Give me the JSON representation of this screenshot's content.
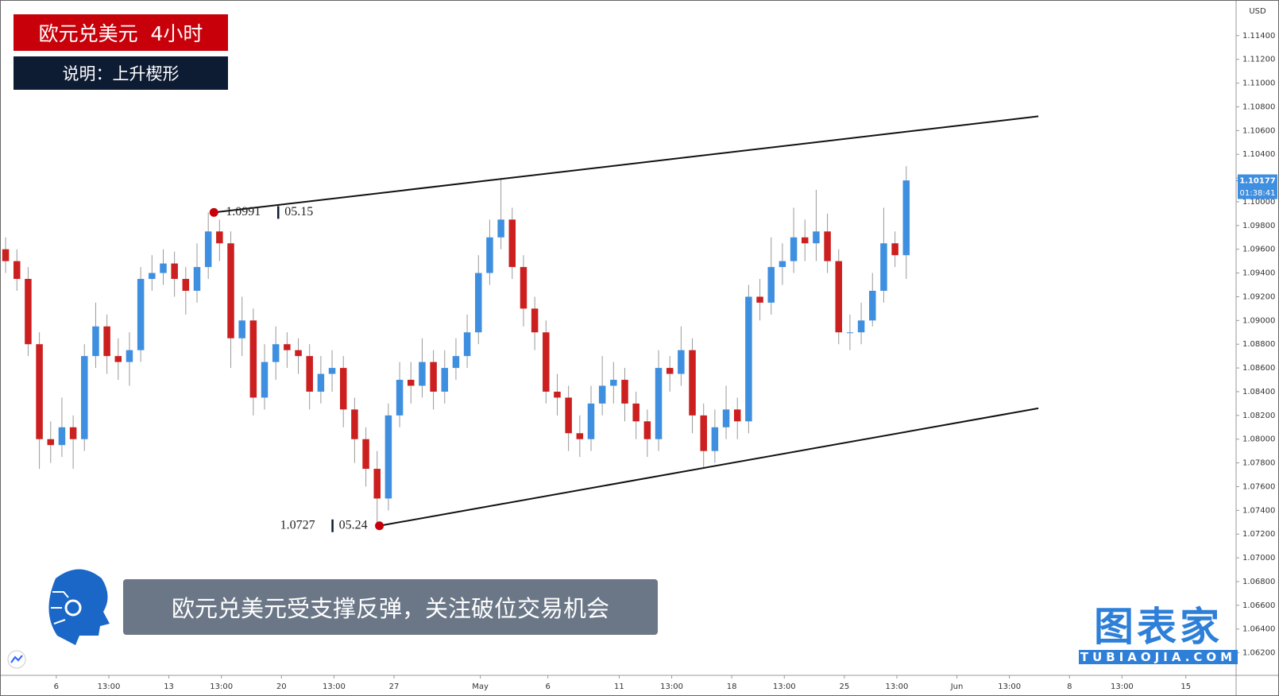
{
  "chart_data": {
    "type": "candlestick",
    "title": "欧元兑美元  4小时",
    "subtitle": "说明：上升楔形",
    "caption": "欧元兑美元受支撑反弹，关注破位交易机会",
    "currency": "USD",
    "last_price": {
      "value": 1.10177,
      "label": "1.10177"
    },
    "countdown": "01:38:41",
    "up_color": "#3f8fe0",
    "down_color": "#cc1f1f",
    "grid": false,
    "x": [
      1.5,
      4.5,
      7.5,
      10.5,
      13.5,
      16.5,
      19.5,
      22.5,
      25.5,
      28.5,
      31.5,
      34.5,
      37.5,
      40.5,
      43.5,
      46.5,
      49.5,
      52.5,
      55.5,
      58.5,
      61.5,
      64.5,
      67.5,
      70.5,
      73.5,
      76.5,
      79.5,
      82.5,
      85.5,
      88.5,
      91.5,
      94.5,
      97.5,
      100.5,
      103.5,
      106.5,
      109.5,
      112.5,
      115.5,
      118.5,
      121.5,
      124.5,
      127.5,
      130.5,
      133.5,
      136.5,
      139.5,
      142.5,
      145.5,
      148.5,
      151.5,
      154.5,
      157.5,
      160.5,
      163.5,
      166.5,
      169.5,
      172.5,
      175.5,
      178.5,
      181.5,
      184.5,
      187.5,
      190.5,
      193.5,
      196.5,
      199.5,
      202.5,
      205.5,
      208.5,
      211.5,
      214.5,
      217.5,
      220.5,
      223.5,
      226.5,
      229.5,
      232.5,
      235.5,
      238.5,
      241.5
    ],
    "open": [
      1.096,
      1.095,
      1.0935,
      1.088,
      1.08,
      1.0795,
      1.081,
      1.08,
      1.087,
      1.0895,
      1.087,
      1.0865,
      1.0875,
      1.0935,
      1.094,
      1.0948,
      1.0935,
      1.0925,
      1.0945,
      1.0975,
      1.0965,
      1.0885,
      1.09,
      1.0835,
      1.0865,
      1.088,
      1.0875,
      1.087,
      1.084,
      1.0855,
      1.086,
      1.0825,
      1.08,
      1.0775,
      1.075,
      1.082,
      1.085,
      1.0845,
      1.0865,
      1.084,
      1.086,
      1.087,
      1.089,
      1.094,
      1.097,
      1.0985,
      1.0945,
      1.091,
      1.089,
      1.084,
      1.0835,
      1.0805,
      1.08,
      1.083,
      1.0845,
      1.085,
      1.083,
      1.0815,
      1.08,
      1.086,
      1.0855,
      1.0875,
      1.082,
      1.079,
      1.081,
      1.0825,
      1.0815,
      1.092,
      1.0915,
      1.0945,
      1.095,
      1.097,
      1.0965,
      1.0975,
      1.095,
      1.089,
      1.089,
      1.09,
      1.0925,
      1.0965,
      1.0955
    ],
    "high": [
      1.097,
      1.096,
      1.0945,
      1.089,
      1.0815,
      1.0835,
      1.082,
      1.088,
      1.0915,
      1.0905,
      1.0885,
      1.089,
      1.0945,
      1.0955,
      1.096,
      1.0958,
      1.0945,
      1.0965,
      1.0991,
      1.0985,
      1.0975,
      1.092,
      1.091,
      1.088,
      1.0895,
      1.089,
      1.0885,
      1.088,
      1.087,
      1.0875,
      1.087,
      1.0835,
      1.081,
      1.079,
      1.083,
      1.0865,
      1.0865,
      1.0885,
      1.0875,
      1.0875,
      1.0885,
      1.0905,
      1.0955,
      1.0985,
      1.102,
      1.0995,
      1.0955,
      1.092,
      1.09,
      1.0855,
      1.0845,
      1.082,
      1.0845,
      1.087,
      1.0865,
      1.086,
      1.084,
      1.0825,
      1.0875,
      1.087,
      1.0895,
      1.0885,
      1.083,
      1.0825,
      1.0845,
      1.0835,
      1.093,
      1.0935,
      1.097,
      1.0965,
      1.0995,
      1.0985,
      1.101,
      1.099,
      1.096,
      1.0905,
      1.0915,
      1.094,
      1.0995,
      1.0975,
      1.103
    ],
    "low": [
      1.094,
      1.0925,
      1.087,
      1.0775,
      1.078,
      1.0785,
      1.0775,
      1.079,
      1.086,
      1.0855,
      1.085,
      1.0845,
      1.0865,
      1.0925,
      1.093,
      1.092,
      1.0905,
      1.0915,
      1.0935,
      1.095,
      1.086,
      1.087,
      1.082,
      1.0825,
      1.085,
      1.086,
      1.0855,
      1.0825,
      1.083,
      1.084,
      1.081,
      1.078,
      1.076,
      1.0727,
      1.074,
      1.081,
      1.083,
      1.0835,
      1.0825,
      1.083,
      1.085,
      1.086,
      1.088,
      1.093,
      1.096,
      1.0935,
      1.0895,
      1.0875,
      1.083,
      1.082,
      1.079,
      1.0785,
      1.079,
      1.082,
      1.083,
      1.0815,
      1.08,
      1.0785,
      1.079,
      1.084,
      1.0845,
      1.0805,
      1.0775,
      1.078,
      1.08,
      1.08,
      1.0805,
      1.09,
      1.0905,
      1.093,
      1.094,
      1.095,
      1.095,
      1.094,
      1.088,
      1.0875,
      1.088,
      1.0895,
      1.0915,
      1.0945,
      1.0935
    ],
    "close": [
      1.095,
      1.0935,
      1.088,
      1.08,
      1.0795,
      1.081,
      1.08,
      1.087,
      1.0895,
      1.087,
      1.0865,
      1.0875,
      1.0935,
      1.094,
      1.0948,
      1.0935,
      1.0925,
      1.0945,
      1.0975,
      1.0965,
      1.0885,
      1.09,
      1.0835,
      1.0865,
      1.088,
      1.0875,
      1.087,
      1.084,
      1.0855,
      1.086,
      1.0825,
      1.08,
      1.0775,
      1.075,
      1.082,
      1.085,
      1.0845,
      1.0865,
      1.084,
      1.086,
      1.087,
      1.089,
      1.094,
      1.097,
      1.0985,
      1.0945,
      1.091,
      1.089,
      1.084,
      1.0835,
      1.0805,
      1.08,
      1.083,
      1.0845,
      1.085,
      1.083,
      1.0815,
      1.08,
      1.086,
      1.0855,
      1.0875,
      1.082,
      1.079,
      1.081,
      1.0825,
      1.0815,
      1.092,
      1.0915,
      1.0945,
      1.095,
      1.097,
      1.0965,
      1.0975,
      1.095,
      1.089,
      1.089,
      1.09,
      1.0925,
      1.0965,
      1.0955,
      1.1018
    ],
    "trendlines": [
      {
        "x": [
          57,
          276.7
        ],
        "y": [
          1.0991,
          1.1072
        ]
      },
      {
        "x": [
          101.1,
          276.7
        ],
        "y": [
          1.0727,
          1.0826
        ]
      }
    ],
    "markers": [
      {
        "x": 57,
        "y": 1.0991,
        "price": "1.0991",
        "date": "05.15"
      },
      {
        "x": 101.1,
        "y": 1.0727,
        "price": "1.0727",
        "date": "05.24"
      }
    ],
    "xlim": [
      0,
      329.4
    ],
    "ylim": [
      1.0601,
      1.117
    ],
    "xticks": [
      {
        "value": 15,
        "label": "6"
      },
      {
        "value": 29,
        "label": "13:00"
      },
      {
        "value": 45,
        "label": "13"
      },
      {
        "value": 59,
        "label": "13:00"
      },
      {
        "value": 75,
        "label": "20"
      },
      {
        "value": 89,
        "label": "13:00"
      },
      {
        "value": 105,
        "label": "27"
      },
      {
        "value": 128,
        "label": "May"
      },
      {
        "value": 146,
        "label": "6"
      },
      {
        "value": 165,
        "label": "11"
      },
      {
        "value": 179,
        "label": "13:00"
      },
      {
        "value": 195,
        "label": "18"
      },
      {
        "value": 209,
        "label": "13:00"
      },
      {
        "value": 225,
        "label": "25"
      },
      {
        "value": 239,
        "label": "13:00"
      },
      {
        "value": 255,
        "label": "Jun"
      },
      {
        "value": 269,
        "label": "13:00"
      },
      {
        "value": 285,
        "label": "8"
      },
      {
        "value": 299,
        "label": "13:00"
      },
      {
        "value": 316,
        "label": "15"
      }
    ],
    "yticks": [
      {
        "value": 1.062,
        "label": "1.06200"
      },
      {
        "value": 1.064,
        "label": "1.06400"
      },
      {
        "value": 1.066,
        "label": "1.06600"
      },
      {
        "value": 1.068,
        "label": "1.06800"
      },
      {
        "value": 1.07,
        "label": "1.07000"
      },
      {
        "value": 1.072,
        "label": "1.07200"
      },
      {
        "value": 1.074,
        "label": "1.07400"
      },
      {
        "value": 1.076,
        "label": "1.07600"
      },
      {
        "value": 1.078,
        "label": "1.07800"
      },
      {
        "value": 1.08,
        "label": "1.08000"
      },
      {
        "value": 1.082,
        "label": "1.08200"
      },
      {
        "value": 1.084,
        "label": "1.08400"
      },
      {
        "value": 1.086,
        "label": "1.08600"
      },
      {
        "value": 1.088,
        "label": "1.08800"
      },
      {
        "value": 1.09,
        "label": "1.09000"
      },
      {
        "value": 1.092,
        "label": "1.09200"
      },
      {
        "value": 1.094,
        "label": "1.09400"
      },
      {
        "value": 1.096,
        "label": "1.09600"
      },
      {
        "value": 1.098,
        "label": "1.09800"
      },
      {
        "value": 1.1,
        "label": "1.10000"
      },
      {
        "value": 1.102,
        "label": "1.10200"
      },
      {
        "value": 1.104,
        "label": "1.10400"
      },
      {
        "value": 1.106,
        "label": "1.10600"
      },
      {
        "value": 1.108,
        "label": "1.10800"
      },
      {
        "value": 1.11,
        "label": "1.11000"
      },
      {
        "value": 1.112,
        "label": "1.11200"
      },
      {
        "value": 1.114,
        "label": "1.11400"
      }
    ]
  },
  "logo": {
    "title": "图表家",
    "url": "TUBIAOJIA.COM"
  }
}
